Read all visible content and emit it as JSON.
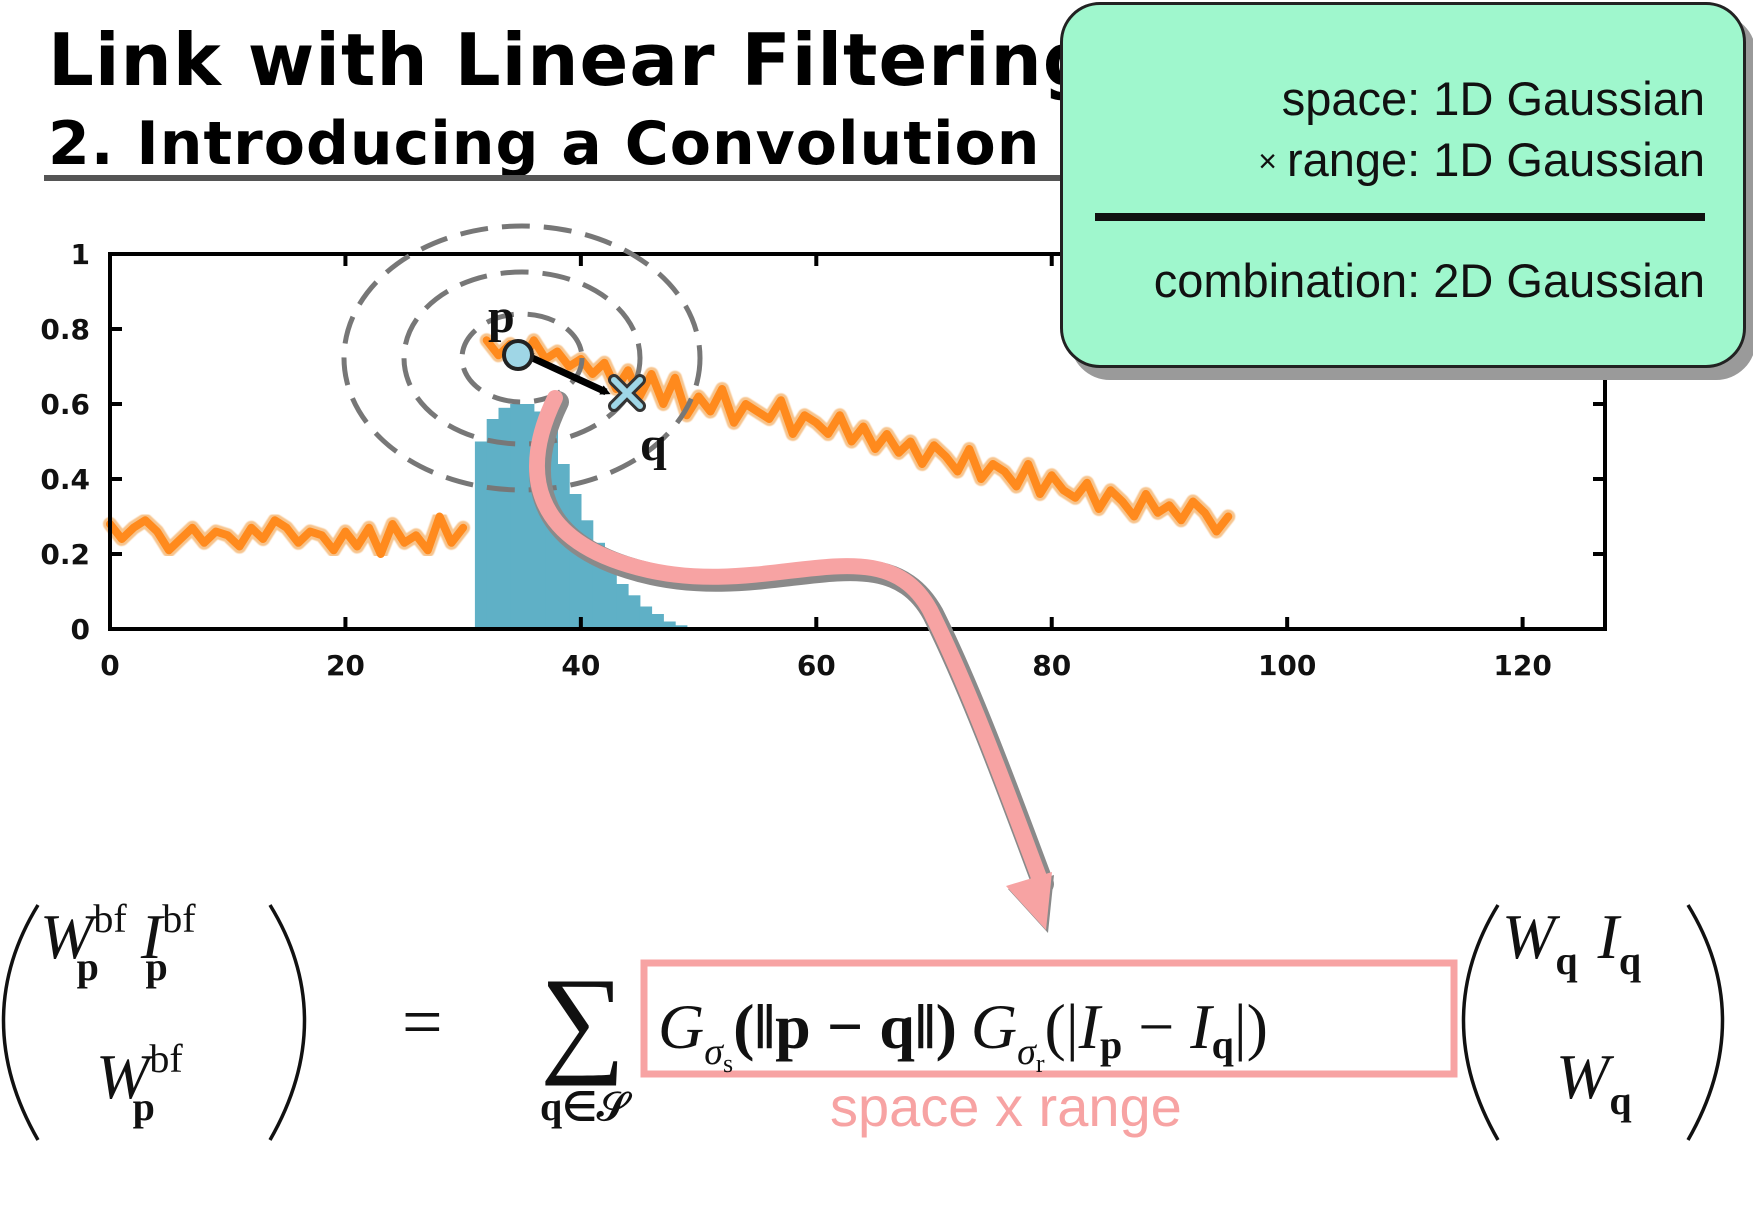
{
  "header": {
    "title": "Link with Linear Filtering",
    "subtitle": "2. Introducing a Convolution"
  },
  "callout": {
    "line1": "space:  1D Gaussian",
    "times_symbol": "×",
    "line2": "range:  1D Gaussian",
    "line3": "combination:  2D Gaussian"
  },
  "plot_labels": {
    "p": "p",
    "q": "q"
  },
  "formula": {
    "lhs_top": {
      "W": "W",
      "W_sup": "bf",
      "W_sub": "p",
      "I": "I",
      "I_sup": "bf",
      "I_sub": "p"
    },
    "lhs_bottom": {
      "W": "W",
      "W_sup": "bf",
      "W_sub": "p"
    },
    "equals": "=",
    "sum": "∑",
    "sum_sub": "q∈𝒮",
    "kernel": {
      "G": "G",
      "sigma": "σ",
      "s": "s",
      "r": "r",
      "arg_space": "(‖p − q‖)",
      "arg_range_open": "(|",
      "I": "I",
      "minus": " − ",
      "p": "p",
      "q": "q",
      "arg_range_close": "|)"
    },
    "rhs_top": {
      "W": "W",
      "W_sub": "q",
      "I": "I",
      "I_sub": "q"
    },
    "rhs_bottom": {
      "W": "W",
      "W_sub": "q"
    },
    "kernel_caption": "space x range"
  },
  "colors": {
    "signal": "#ff8a1d",
    "histogram": "#5fb0c6",
    "callout_bg": "#9ff7cd",
    "pink": "#f7a3a3",
    "dashed": "#777777"
  },
  "chart_data": {
    "type": "line",
    "xlim": [
      0,
      127
    ],
    "ylim": [
      0,
      1
    ],
    "xticks": [
      0,
      20,
      40,
      60,
      80,
      100,
      120
    ],
    "yticks": [
      0,
      0.2,
      0.4,
      0.6,
      0.8,
      1
    ],
    "ytick_labels": [
      "0",
      "0.2",
      "0.4",
      "0.6",
      "0.8",
      "1"
    ],
    "series": [
      {
        "type": "line",
        "x": [
          0,
          1,
          2,
          3,
          4,
          5,
          6,
          7,
          8,
          9,
          10,
          11,
          12,
          13,
          14,
          15,
          16,
          17,
          18,
          19,
          20,
          21,
          22,
          23,
          24,
          25,
          26,
          27,
          28,
          29,
          30
        ],
        "y": [
          0.28,
          0.24,
          0.27,
          0.29,
          0.26,
          0.21,
          0.24,
          0.27,
          0.23,
          0.26,
          0.25,
          0.22,
          0.27,
          0.24,
          0.29,
          0.27,
          0.23,
          0.26,
          0.25,
          0.21,
          0.26,
          0.22,
          0.27,
          0.2,
          0.28,
          0.23,
          0.25,
          0.21,
          0.3,
          0.23,
          0.27
        ]
      },
      {
        "type": "line",
        "x": [
          32,
          33,
          34,
          35,
          36,
          37,
          38,
          39,
          40,
          41,
          42,
          43,
          44,
          45,
          46,
          47,
          48,
          49,
          50,
          51,
          52,
          53,
          54,
          55,
          56,
          57,
          58,
          59,
          60,
          61,
          62,
          63,
          64,
          65,
          66,
          67,
          68,
          69,
          70,
          71,
          72,
          73,
          74,
          75,
          76,
          77,
          78,
          79,
          80,
          81,
          82,
          83,
          84,
          85,
          86,
          87,
          88,
          89,
          90,
          91,
          92,
          93,
          94,
          95
        ],
        "y": [
          0.77,
          0.73,
          0.76,
          0.71,
          0.77,
          0.72,
          0.74,
          0.7,
          0.72,
          0.68,
          0.71,
          0.64,
          0.69,
          0.62,
          0.68,
          0.6,
          0.67,
          0.57,
          0.62,
          0.58,
          0.64,
          0.55,
          0.6,
          0.58,
          0.56,
          0.61,
          0.52,
          0.57,
          0.55,
          0.52,
          0.57,
          0.5,
          0.54,
          0.48,
          0.52,
          0.47,
          0.5,
          0.44,
          0.49,
          0.46,
          0.42,
          0.48,
          0.4,
          0.44,
          0.42,
          0.38,
          0.44,
          0.36,
          0.41,
          0.37,
          0.35,
          0.39,
          0.32,
          0.37,
          0.34,
          0.3,
          0.36,
          0.31,
          0.33,
          0.29,
          0.34,
          0.31,
          0.26,
          0.3
        ]
      },
      {
        "type": "bar",
        "x": [
          31,
          32,
          33,
          34,
          35,
          36,
          37,
          38,
          39,
          40,
          41,
          42,
          43,
          44,
          45,
          46,
          47,
          48,
          49,
          50
        ],
        "y": [
          0.5,
          0.56,
          0.59,
          0.6,
          0.6,
          0.58,
          0.53,
          0.44,
          0.36,
          0.29,
          0.23,
          0.17,
          0.12,
          0.09,
          0.06,
          0.04,
          0.02,
          0.01,
          0.005,
          0.002
        ]
      }
    ]
  }
}
